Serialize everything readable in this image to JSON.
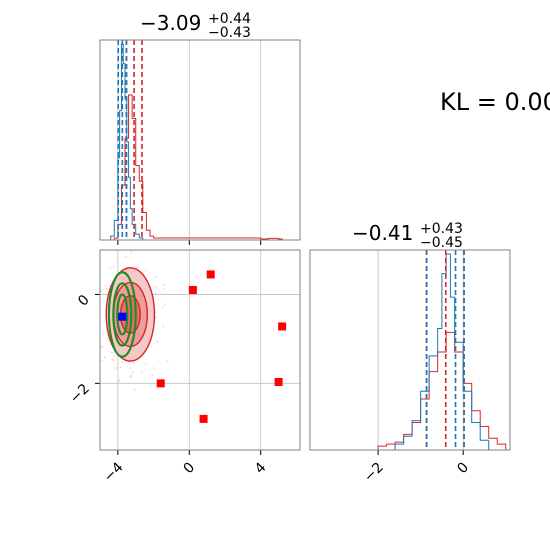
{
  "kl_label": "KL = 0.00",
  "colors": {
    "red": "#d62728",
    "blue": "#1f77b4",
    "green": "#228b22",
    "red_fill": "#e88a8a",
    "marker_blue": "#0000ff",
    "marker_red": "#ff0000",
    "grid": "#c0c0c0"
  },
  "chart_data": [
    {
      "panel": "marginal-x",
      "type": "histogram",
      "title": {
        "main": "−3.09",
        "sup": "+0.44",
        "sub": "−0.43"
      },
      "xlim": [
        -5,
        6.2
      ],
      "ticks": [
        -4,
        0,
        4
      ],
      "grid": true,
      "red_quantiles": [
        -3.52,
        -3.09,
        -2.65
      ],
      "blue_quantiles": [
        -3.98,
        -3.75,
        -3.52
      ],
      "red_hist": {
        "x": [
          -4.2,
          -4.0,
          -3.8,
          -3.6,
          -3.4,
          -3.2,
          -3.0,
          -2.8,
          -2.6,
          -2.4,
          -2.2,
          -2.0,
          -1.8,
          4.0,
          4.4,
          5.0
        ],
        "y": [
          0.01,
          0.08,
          0.28,
          0.52,
          0.74,
          0.62,
          0.38,
          0.3,
          0.14,
          0.05,
          0.02,
          0.01,
          0.01,
          0.005,
          0.008,
          0.005
        ]
      },
      "blue_hist": {
        "x": [
          -4.4,
          -4.2,
          -4.0,
          -3.9,
          -3.8,
          -3.7,
          -3.6,
          -3.5,
          -3.4,
          -3.3,
          -3.2,
          -3.0,
          -2.8
        ],
        "y": [
          0.02,
          0.1,
          0.42,
          0.66,
          1.0,
          0.9,
          0.72,
          0.5,
          0.32,
          0.16,
          0.08,
          0.03,
          0.01
        ]
      }
    },
    {
      "panel": "joint",
      "type": "scatter",
      "xlim": [
        -5,
        6.2
      ],
      "ylim": [
        -3.5,
        1.0
      ],
      "xticks": [
        -4,
        0,
        4
      ],
      "yticks": [
        -2,
        0
      ],
      "grid": true,
      "red_markers": [
        {
          "x": 1.2,
          "y": 0.45
        },
        {
          "x": 0.2,
          "y": 0.1
        },
        {
          "x": 5.2,
          "y": -0.72
        },
        {
          "x": -1.6,
          "y": -2.0
        },
        {
          "x": 5.0,
          "y": -1.97
        },
        {
          "x": 0.8,
          "y": -2.8
        }
      ],
      "blue_marker": {
        "x": -3.75,
        "y": -0.5
      },
      "red_contours": [
        {
          "cx": -3.3,
          "cy": -0.45,
          "rx": 1.35,
          "ry": 1.05
        },
        {
          "cx": -3.3,
          "cy": -0.45,
          "rx": 0.95,
          "ry": 0.72
        },
        {
          "cx": -3.3,
          "cy": -0.45,
          "rx": 0.55,
          "ry": 0.42
        }
      ],
      "green_contours": [
        {
          "cx": -3.75,
          "cy": -0.45,
          "rx": 0.75,
          "ry": 0.95
        },
        {
          "cx": -3.75,
          "cy": -0.45,
          "rx": 0.5,
          "ry": 0.7
        },
        {
          "cx": -3.75,
          "cy": -0.45,
          "rx": 0.28,
          "ry": 0.45
        }
      ]
    },
    {
      "panel": "marginal-y",
      "type": "histogram",
      "title": {
        "main": "−0.41",
        "sup": "+0.43",
        "sub": "−0.45"
      },
      "xlim": [
        -3.6,
        1.1
      ],
      "ticks": [
        -2,
        0
      ],
      "grid": true,
      "red_quantiles": [
        -0.86,
        -0.41,
        0.02
      ],
      "blue_quantiles": [
        -0.86,
        -0.18,
        0.02
      ],
      "red_hist": {
        "x": [
          -2.0,
          -1.8,
          -1.6,
          -1.4,
          -1.2,
          -1.0,
          -0.8,
          -0.6,
          -0.4,
          -0.2,
          0.0,
          0.2,
          0.4,
          0.6,
          0.8
        ],
        "y": [
          0.02,
          0.03,
          0.04,
          0.08,
          0.14,
          0.26,
          0.4,
          0.5,
          0.6,
          0.5,
          0.34,
          0.2,
          0.12,
          0.06,
          0.03
        ]
      },
      "blue_hist": {
        "x": [
          -1.6,
          -1.4,
          -1.2,
          -1.0,
          -0.8,
          -0.6,
          -0.5,
          -0.4,
          -0.3,
          -0.2,
          0.0,
          0.2,
          0.4
        ],
        "y": [
          0.03,
          0.07,
          0.15,
          0.3,
          0.48,
          0.62,
          0.9,
          1.0,
          0.78,
          0.55,
          0.3,
          0.14,
          0.05
        ]
      }
    }
  ]
}
